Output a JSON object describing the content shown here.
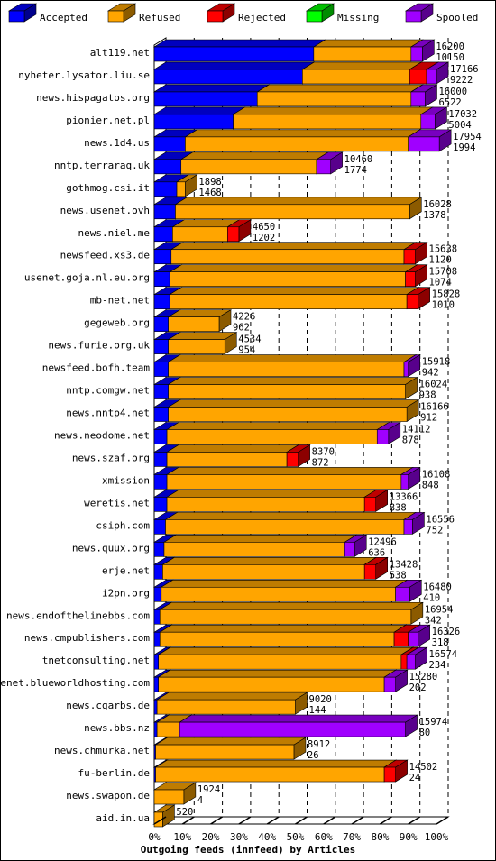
{
  "legend": [
    {
      "label": "Accepted",
      "color": "#0000ff"
    },
    {
      "label": "Refused",
      "color": "#ffa500"
    },
    {
      "label": "Rejected",
      "color": "#ff0000"
    },
    {
      "label": "Missing",
      "color": "#00ff00"
    },
    {
      "label": "Spooled",
      "color": "#a000ff"
    }
  ],
  "chart_data": {
    "type": "bar",
    "orientation": "horizontal",
    "stacked": true,
    "xlabel": "Outgoing feeds (innfeed) by Articles",
    "ticks": [
      "0%",
      "10%",
      "20%",
      "30%",
      "40%",
      "50%",
      "60%",
      "70%",
      "80%",
      "90%",
      "100%"
    ],
    "xlim": [
      0,
      100
    ],
    "grid": true,
    "legend_position": "top",
    "rows": [
      {
        "host": "alt119.net",
        "total": "16200",
        "accepted": "10150",
        "s": [
          56.5,
          34.5,
          0,
          0,
          4
        ]
      },
      {
        "host": "nyheter.lysator.liu.se",
        "total": "17166",
        "accepted": "9222",
        "s": [
          52.5,
          38,
          6,
          0,
          3.5
        ]
      },
      {
        "host": "news.hispagatos.org",
        "total": "16000",
        "accepted": "6522",
        "s": [
          36.5,
          54.5,
          0,
          0,
          5
        ]
      },
      {
        "host": "pionier.net.pl",
        "total": "17032",
        "accepted": "5004",
        "s": [
          28,
          66.5,
          0,
          0,
          5
        ]
      },
      {
        "host": "news.1d4.us",
        "total": "17954",
        "accepted": "1994",
        "s": [
          11,
          79,
          0,
          0,
          11
        ]
      },
      {
        "host": "nntp.terraraq.uk",
        "total": "10460",
        "accepted": "1774",
        "s": [
          9.5,
          48,
          0,
          0,
          5
        ]
      },
      {
        "host": "gothmog.csi.it",
        "total": "1898",
        "accepted": "1468",
        "s": [
          8,
          3,
          0,
          0,
          0
        ]
      },
      {
        "host": "news.usenet.ovh",
        "total": "16028",
        "accepted": "1378",
        "s": [
          7.5,
          83,
          0,
          0,
          0
        ]
      },
      {
        "host": "news.niel.me",
        "total": "4650",
        "accepted": "1202",
        "s": [
          6.5,
          19.5,
          4,
          0,
          0
        ]
      },
      {
        "host": "newsfeed.xs3.de",
        "total": "15638",
        "accepted": "1120",
        "s": [
          6,
          82.5,
          4,
          0,
          0
        ]
      },
      {
        "host": "usenet.goja.nl.eu.org",
        "total": "15708",
        "accepted": "1074",
        "s": [
          5.5,
          83.5,
          3.5,
          0,
          0
        ]
      },
      {
        "host": "mb-net.net",
        "total": "15828",
        "accepted": "1010",
        "s": [
          5.5,
          84,
          4,
          0,
          0
        ]
      },
      {
        "host": "gegeweb.org",
        "total": "4226",
        "accepted": "962",
        "s": [
          5,
          18,
          0,
          0,
          0
        ]
      },
      {
        "host": "news.furie.org.uk",
        "total": "4534",
        "accepted": "954",
        "s": [
          5,
          20,
          0,
          0,
          0
        ]
      },
      {
        "host": "newsfeed.bofh.team",
        "total": "15918",
        "accepted": "942",
        "s": [
          5,
          83.5,
          0,
          0,
          1.5
        ]
      },
      {
        "host": "nntp.comgw.net",
        "total": "16024",
        "accepted": "938",
        "s": [
          5,
          84,
          0,
          0,
          0
        ]
      },
      {
        "host": "news.nntp4.net",
        "total": "16166",
        "accepted": "912",
        "s": [
          5,
          84.5,
          0,
          0,
          0
        ]
      },
      {
        "host": "news.neodome.net",
        "total": "14112",
        "accepted": "878",
        "s": [
          4.5,
          74.5,
          0,
          0,
          4
        ]
      },
      {
        "host": "news.szaf.org",
        "total": "8370",
        "accepted": "872",
        "s": [
          4.5,
          42.5,
          4,
          0,
          0
        ]
      },
      {
        "host": "xmission",
        "total": "16108",
        "accepted": "848",
        "s": [
          4.5,
          83,
          0,
          0,
          2.5
        ]
      },
      {
        "host": "weretis.net",
        "total": "13366",
        "accepted": "838",
        "s": [
          4.5,
          70,
          4,
          0,
          0
        ]
      },
      {
        "host": "csiph.com",
        "total": "16556",
        "accepted": "752",
        "s": [
          4,
          84.5,
          0,
          0,
          3
        ]
      },
      {
        "host": "news.quux.org",
        "total": "12496",
        "accepted": "636",
        "s": [
          3.5,
          64,
          0,
          0,
          3.5
        ]
      },
      {
        "host": "erje.net",
        "total": "13428",
        "accepted": "538",
        "s": [
          3,
          71.5,
          4,
          0,
          0
        ]
      },
      {
        "host": "i2pn.org",
        "total": "16480",
        "accepted": "410",
        "s": [
          2.5,
          83,
          0,
          0,
          5
        ]
      },
      {
        "host": "news.endofthelinebbs.com",
        "total": "16954",
        "accepted": "342",
        "s": [
          2,
          89,
          0,
          0,
          0
        ]
      },
      {
        "host": "news.cmpublishers.com",
        "total": "16326",
        "accepted": "318",
        "s": [
          2,
          83,
          5,
          0,
          3.5
        ]
      },
      {
        "host": "tnetconsulting.net",
        "total": "16574",
        "accepted": "234",
        "s": [
          1.5,
          86,
          2,
          0,
          3
        ]
      },
      {
        "host": "usenet.blueworldhosting.com",
        "total": "15280",
        "accepted": "202",
        "s": [
          1.5,
          80,
          0,
          0,
          4
        ]
      },
      {
        "host": "news.cgarbs.de",
        "total": "9020",
        "accepted": "144",
        "s": [
          1,
          49,
          0,
          0,
          0
        ]
      },
      {
        "host": "news.bbs.nz",
        "total": "15974",
        "accepted": "80",
        "s": [
          1,
          8,
          0,
          0,
          80
        ]
      },
      {
        "host": "news.chmurka.net",
        "total": "8912",
        "accepted": "26",
        "s": [
          0.5,
          49,
          0,
          0,
          0
        ]
      },
      {
        "host": "fu-berlin.de",
        "total": "14502",
        "accepted": "24",
        "s": [
          0.5,
          81,
          4,
          0,
          0
        ]
      },
      {
        "host": "news.swapon.de",
        "total": "1924",
        "accepted": "4",
        "s": [
          0,
          10.5,
          0,
          0,
          0
        ]
      },
      {
        "host": "aid.in.ua",
        "total": "520",
        "accepted": "",
        "s": [
          0,
          3,
          0,
          0,
          0
        ]
      }
    ]
  }
}
